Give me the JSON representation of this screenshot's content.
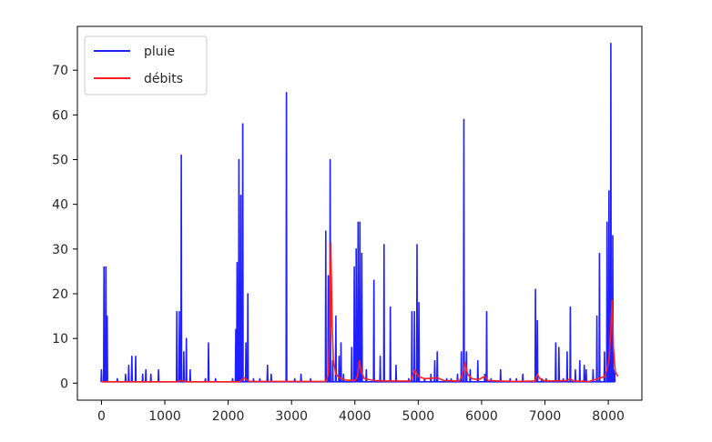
{
  "chart_data": {
    "type": "line",
    "title": "",
    "xlabel": "",
    "ylabel": "",
    "xlim": [
      -380,
      8530
    ],
    "ylim": [
      -3.8,
      79.8
    ],
    "xticks": [
      0,
      1000,
      2000,
      3000,
      4000,
      5000,
      6000,
      7000,
      8000
    ],
    "yticks": [
      0,
      10,
      20,
      30,
      40,
      50,
      60,
      70
    ],
    "xtick_labels": [
      "0",
      "1000",
      "2000",
      "3000",
      "4000",
      "5000",
      "6000",
      "7000",
      "8000"
    ],
    "ytick_labels": [
      "0",
      "10",
      "20",
      "30",
      "40",
      "50",
      "60",
      "70"
    ],
    "grid": false,
    "legend_position": "top-left",
    "series": [
      {
        "name": "pluie",
        "color": "#1f1fff",
        "spikes": [
          [
            0,
            3
          ],
          [
            40,
            26
          ],
          [
            70,
            26
          ],
          [
            90,
            15
          ],
          [
            250,
            1
          ],
          [
            380,
            2
          ],
          [
            430,
            4
          ],
          [
            480,
            6
          ],
          [
            540,
            6
          ],
          [
            650,
            2
          ],
          [
            700,
            3
          ],
          [
            780,
            2
          ],
          [
            900,
            3
          ],
          [
            1190,
            16
          ],
          [
            1230,
            16
          ],
          [
            1260,
            51
          ],
          [
            1300,
            7
          ],
          [
            1340,
            10
          ],
          [
            1400,
            3
          ],
          [
            1640,
            1
          ],
          [
            1690,
            9
          ],
          [
            1800,
            1
          ],
          [
            2070,
            1
          ],
          [
            2120,
            12
          ],
          [
            2140,
            27
          ],
          [
            2170,
            50
          ],
          [
            2200,
            42
          ],
          [
            2230,
            58
          ],
          [
            2280,
            9
          ],
          [
            2310,
            20
          ],
          [
            2400,
            1
          ],
          [
            2500,
            1
          ],
          [
            2620,
            4
          ],
          [
            2680,
            2
          ],
          [
            2920,
            65
          ],
          [
            3050,
            1
          ],
          [
            3150,
            2
          ],
          [
            3300,
            1
          ],
          [
            3540,
            34
          ],
          [
            3580,
            24
          ],
          [
            3610,
            50
          ],
          [
            3650,
            5
          ],
          [
            3700,
            15
          ],
          [
            3750,
            6
          ],
          [
            3780,
            9
          ],
          [
            3820,
            2
          ],
          [
            3950,
            8
          ],
          [
            3990,
            26
          ],
          [
            4020,
            30
          ],
          [
            4050,
            36
          ],
          [
            4080,
            36
          ],
          [
            4110,
            29
          ],
          [
            4180,
            3
          ],
          [
            4300,
            23
          ],
          [
            4400,
            6
          ],
          [
            4460,
            31
          ],
          [
            4560,
            17
          ],
          [
            4650,
            4
          ],
          [
            4850,
            1
          ],
          [
            4900,
            16
          ],
          [
            4940,
            16
          ],
          [
            4980,
            31
          ],
          [
            5010,
            18
          ],
          [
            5100,
            1
          ],
          [
            5200,
            2
          ],
          [
            5260,
            5
          ],
          [
            5300,
            7
          ],
          [
            5450,
            1
          ],
          [
            5520,
            1
          ],
          [
            5620,
            2
          ],
          [
            5680,
            7
          ],
          [
            5720,
            59
          ],
          [
            5760,
            7
          ],
          [
            5820,
            3
          ],
          [
            5940,
            5
          ],
          [
            6050,
            2
          ],
          [
            6080,
            16
          ],
          [
            6150,
            1
          ],
          [
            6300,
            3
          ],
          [
            6450,
            1
          ],
          [
            6550,
            1
          ],
          [
            6650,
            2
          ],
          [
            6850,
            21
          ],
          [
            6880,
            14
          ],
          [
            6950,
            1
          ],
          [
            7020,
            1
          ],
          [
            7170,
            9
          ],
          [
            7220,
            8
          ],
          [
            7290,
            1
          ],
          [
            7350,
            7
          ],
          [
            7400,
            17
          ],
          [
            7480,
            3
          ],
          [
            7550,
            5
          ],
          [
            7620,
            4
          ],
          [
            7650,
            3
          ],
          [
            7760,
            3
          ],
          [
            7820,
            15
          ],
          [
            7860,
            29
          ],
          [
            7940,
            7
          ],
          [
            7980,
            36
          ],
          [
            8010,
            43
          ],
          [
            8040,
            76
          ],
          [
            8070,
            33
          ],
          [
            8100,
            3
          ]
        ]
      },
      {
        "name": "débits",
        "color": "#ff1f1f",
        "points": [
          [
            0,
            0.3
          ],
          [
            1200,
            0.3
          ],
          [
            1260,
            0.6
          ],
          [
            1350,
            0.3
          ],
          [
            2180,
            0.3
          ],
          [
            2250,
            1.2
          ],
          [
            2340,
            0.4
          ],
          [
            3540,
            0.4
          ],
          [
            3580,
            2
          ],
          [
            3600,
            12
          ],
          [
            3620,
            31.5
          ],
          [
            3640,
            14
          ],
          [
            3660,
            5
          ],
          [
            3700,
            2
          ],
          [
            3760,
            1.2
          ],
          [
            3850,
            0.7
          ],
          [
            4000,
            0.6
          ],
          [
            4040,
            1.5
          ],
          [
            4070,
            5
          ],
          [
            4100,
            2.5
          ],
          [
            4150,
            1
          ],
          [
            4300,
            0.6
          ],
          [
            4500,
            0.5
          ],
          [
            4880,
            0.5
          ],
          [
            4950,
            3
          ],
          [
            5000,
            1.5
          ],
          [
            5100,
            1
          ],
          [
            5300,
            1.2
          ],
          [
            5400,
            0.6
          ],
          [
            5650,
            0.5
          ],
          [
            5700,
            2
          ],
          [
            5740,
            4.5
          ],
          [
            5780,
            2
          ],
          [
            5850,
            1
          ],
          [
            5950,
            0.8
          ],
          [
            6050,
            1.5
          ],
          [
            6100,
            0.6
          ],
          [
            6500,
            0.4
          ],
          [
            6850,
            0.5
          ],
          [
            6880,
            2
          ],
          [
            6920,
            1
          ],
          [
            7000,
            0.5
          ],
          [
            7350,
            0.6
          ],
          [
            7400,
            1
          ],
          [
            7450,
            0.5
          ],
          [
            7700,
            0.4
          ],
          [
            7950,
            1.5
          ],
          [
            8010,
            5
          ],
          [
            8040,
            12
          ],
          [
            8060,
            18.5
          ],
          [
            8080,
            8
          ],
          [
            8110,
            2.5
          ],
          [
            8150,
            1.5
          ]
        ]
      }
    ]
  }
}
